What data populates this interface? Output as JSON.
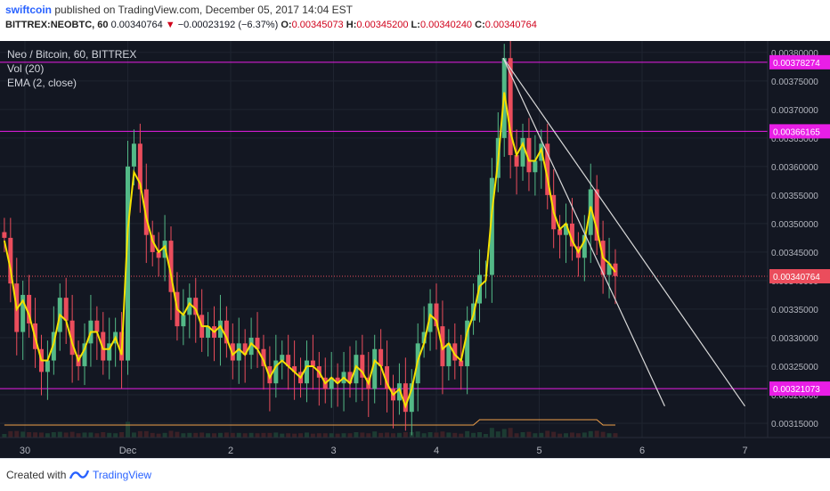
{
  "header": {
    "author": "swiftcoin",
    "published": "published on TradingView.com, December 05, 2017 14:04 EST",
    "symbol": "BITTREX:NEOBTC, 60",
    "last": "0.00340764",
    "arrow": "▼",
    "change": "−0.00023192 (−6.37%)",
    "o_label": "O:",
    "o": "0.00345073",
    "h_label": "H:",
    "h": "0.00345200",
    "l_label": "L:",
    "l": "0.00340240",
    "c_label": "C:",
    "c": "0.00340764"
  },
  "legend": {
    "title": "Neo / Bitcoin, 60, BITTREX",
    "vol": "Vol (20)",
    "ema": "EMA (2, close)"
  },
  "footer": {
    "created": "Created with",
    "brand": "TradingView"
  },
  "colors": {
    "background": "#131722",
    "up": "#53b987",
    "down": "#eb4d5c",
    "ema": "#f5e100",
    "level": "#e91ee6",
    "trend": "#d9d9d9",
    "volume_ma": "#f0a04b"
  },
  "chart_data": {
    "type": "candlestick",
    "title": "Neo / Bitcoin, 60, BITTREX",
    "xlabel": "",
    "ylabel": "",
    "x_ticks": [
      "30",
      "Dec",
      "2",
      "3",
      "4",
      "5",
      "6",
      "7"
    ],
    "y_ticks": [
      "0.00315000",
      "0.00320000",
      "0.00325000",
      "0.00330000",
      "0.00335000",
      "0.00340000",
      "0.00345000",
      "0.00350000",
      "0.00355000",
      "0.00360000",
      "0.00365000",
      "0.00370000",
      "0.00375000",
      "0.00380000"
    ],
    "ylim": [
      0.003125,
      0.00382
    ],
    "levels": [
      {
        "label": "0.00378274",
        "value": 0.00378274
      },
      {
        "label": "0.00366165",
        "value": 0.00366165
      },
      {
        "label": "0.00321073",
        "value": 0.00321073
      }
    ],
    "last_price": {
      "label": "0.00340764",
      "value": 0.00340764
    },
    "trendlines": [
      {
        "from_day": 4.65,
        "from": 0.00379,
        "to_day": 6.22,
        "to": 0.00318
      },
      {
        "from_day": 4.65,
        "from": 0.00379,
        "to_day": 7.0,
        "to": 0.00318
      }
    ],
    "x_days": [
      -0.2,
      -0.14,
      -0.08,
      -0.02,
      0.04,
      0.1,
      0.16,
      0.22,
      0.28,
      0.34,
      0.4,
      0.46,
      0.52,
      0.58,
      0.64,
      0.7,
      0.76,
      0.82,
      0.88,
      0.94,
      1.0,
      1.06,
      1.12,
      1.18,
      1.24,
      1.3,
      1.36,
      1.42,
      1.48,
      1.54,
      1.6,
      1.66,
      1.72,
      1.78,
      1.84,
      1.9,
      1.96,
      2.02,
      2.08,
      2.14,
      2.2,
      2.26,
      2.32,
      2.38,
      2.44,
      2.5,
      2.56,
      2.62,
      2.68,
      2.74,
      2.8,
      2.86,
      2.92,
      2.98,
      3.04,
      3.1,
      3.16,
      3.22,
      3.28,
      3.34,
      3.4,
      3.46,
      3.52,
      3.58,
      3.64,
      3.7,
      3.76,
      3.82,
      3.88,
      3.94,
      4.0,
      4.06,
      4.12,
      4.18,
      4.24,
      4.3,
      4.36,
      4.42,
      4.48,
      4.54,
      4.6,
      4.66,
      4.72,
      4.78,
      4.84,
      4.9,
      4.96,
      5.02,
      5.08,
      5.14,
      5.2,
      5.26,
      5.32,
      5.38,
      5.44,
      5.5,
      5.56,
      5.62,
      5.68,
      5.74
    ],
    "close": [
      0.003475,
      0.003395,
      0.00331,
      0.003375,
      0.003325,
      0.00328,
      0.00324,
      0.00326,
      0.00331,
      0.00337,
      0.00333,
      0.00327,
      0.00325,
      0.00329,
      0.00333,
      0.00331,
      0.00326,
      0.00329,
      0.00331,
      0.00326,
      0.0036,
      0.00364,
      0.00356,
      0.00348,
      0.00345,
      0.00344,
      0.00347,
      0.00338,
      0.00332,
      0.00334,
      0.00337,
      0.00334,
      0.0033,
      0.00332,
      0.0033,
      0.00333,
      0.00329,
      0.00326,
      0.00329,
      0.00327,
      0.0033,
      0.00328,
      0.00325,
      0.00322,
      0.00326,
      0.00327,
      0.00325,
      0.00324,
      0.00322,
      0.00326,
      0.00325,
      0.00323,
      0.00321,
      0.00323,
      0.00322,
      0.00324,
      0.00322,
      0.00327,
      0.00323,
      0.00321,
      0.00328,
      0.00325,
      0.00321,
      0.00319,
      0.00322,
      0.00317,
      0.00322,
      0.00329,
      0.00331,
      0.00336,
      0.00332,
      0.00325,
      0.00329,
      0.00326,
      0.00325,
      0.00333,
      0.00336,
      0.00341,
      0.00341,
      0.00358,
      0.00365,
      0.00379,
      0.00362,
      0.0036,
      0.00365,
      0.00359,
      0.00361,
      0.00364,
      0.00355,
      0.00349,
      0.00348,
      0.0035,
      0.00346,
      0.00344,
      0.00348,
      0.00356,
      0.00347,
      0.00341,
      0.00343,
      0.003408
    ],
    "ema": [
      0.00347,
      0.00342,
      0.00335,
      0.003365,
      0.00334,
      0.0033,
      0.00326,
      0.00326,
      0.00329,
      0.00334,
      0.00333,
      0.00329,
      0.00326,
      0.00328,
      0.00331,
      0.00331,
      0.00328,
      0.00328,
      0.0033,
      0.00327,
      0.00349,
      0.00359,
      0.00357,
      0.00351,
      0.00347,
      0.00345,
      0.00346,
      0.00341,
      0.00335,
      0.00334,
      0.00336,
      0.00335,
      0.00332,
      0.00332,
      0.00331,
      0.00332,
      0.0033,
      0.00327,
      0.00328,
      0.00327,
      0.00329,
      0.00328,
      0.00326,
      0.00323,
      0.00325,
      0.00326,
      0.00325,
      0.00324,
      0.00323,
      0.00325,
      0.00325,
      0.00324,
      0.00322,
      0.00323,
      0.00322,
      0.00323,
      0.00322,
      0.00325,
      0.00324,
      0.00322,
      0.00326,
      0.00325,
      0.00322,
      0.0032,
      0.00321,
      0.00318,
      0.00321,
      0.00326,
      0.00329,
      0.00334,
      0.00333,
      0.00328,
      0.00329,
      0.00327,
      0.00326,
      0.00331,
      0.00334,
      0.00339,
      0.0034,
      0.00352,
      0.00361,
      0.00373,
      0.00366,
      0.00362,
      0.00364,
      0.00361,
      0.00361,
      0.00363,
      0.00358,
      0.00352,
      0.00349,
      0.0035,
      0.00347,
      0.00345,
      0.00347,
      0.00353,
      0.00349,
      0.00344,
      0.00343,
      0.003415
    ]
  }
}
